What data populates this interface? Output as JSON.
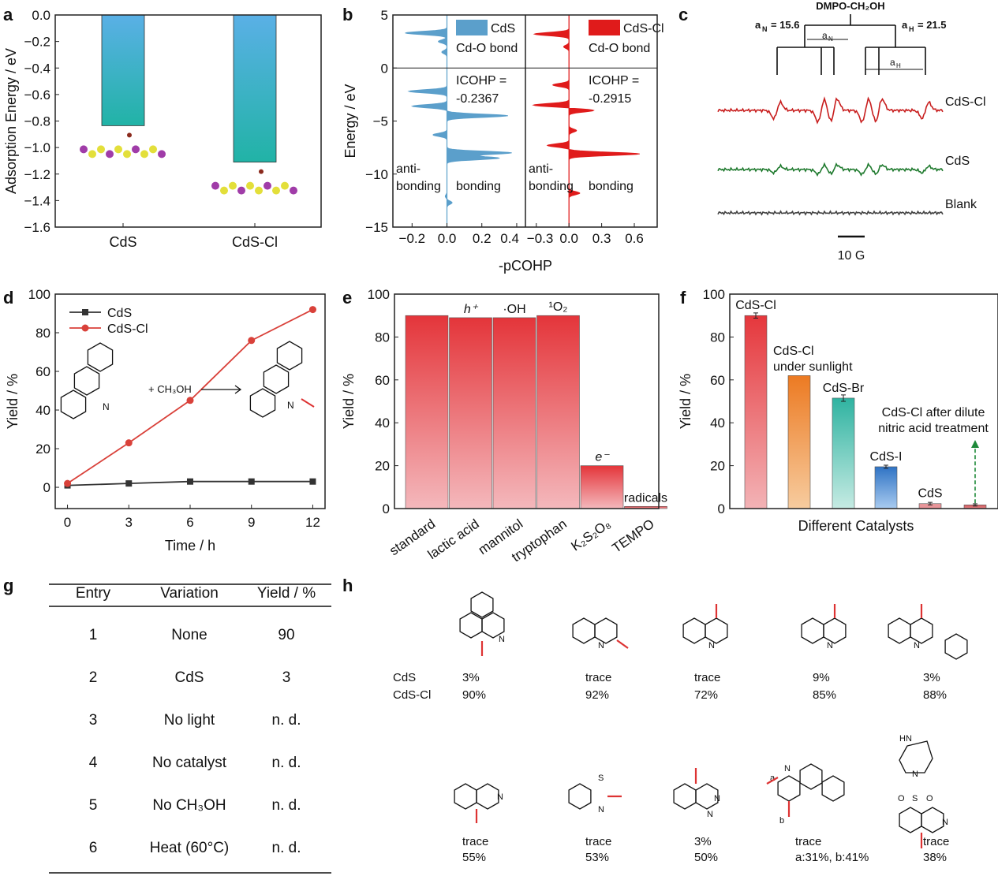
{
  "panel_labels": [
    "a",
    "b",
    "c",
    "d",
    "e",
    "f",
    "g",
    "h"
  ],
  "chart_data": [
    {
      "id": "a",
      "type": "bar",
      "categories": [
        "CdS",
        "CdS-Cl"
      ],
      "values": [
        -0.835,
        -1.11
      ],
      "ylabel": "Adsorption Energy / eV",
      "ylim": [
        -1.6,
        0.0
      ],
      "yticks": [
        "0.0",
        "-0.2",
        "-0.4",
        "-0.6",
        "-0.8",
        "-1.0",
        "-1.2",
        "-1.4",
        "-1.6"
      ],
      "bar_color_top": "#5ab0e6",
      "bar_color_bottom": "#21b3a6"
    },
    {
      "id": "b",
      "type": "area",
      "ylabel": "Energy / eV",
      "xlabel": "-pCOHP",
      "ylim": [
        -15,
        5
      ],
      "yticks": [
        "5",
        "0",
        "-5",
        "-10",
        "-15"
      ],
      "panels": [
        {
          "name": "CdS",
          "subtitle": "Cd-O bond",
          "icohp_label": "ICOHP =",
          "icohp_value": "-0.2367",
          "color": "#5b9fcb",
          "xlim": [
            -0.31,
            0.45
          ],
          "xticks": [
            "-0.2",
            "0.0",
            "0.2",
            "0.4"
          ],
          "xtick_values": [
            -0.2,
            0,
            0.2,
            0.4
          ],
          "peaks": [
            [
              3.3,
              -0.24
            ],
            [
              2.5,
              -0.05
            ],
            [
              1.5,
              -0.03
            ],
            [
              -2.2,
              -0.22
            ],
            [
              -3.6,
              -0.2
            ],
            [
              -4.5,
              0.35
            ],
            [
              -6.3,
              -0.08
            ],
            [
              -8.0,
              0.37
            ],
            [
              -8.5,
              0.3
            ],
            [
              -12.1,
              -0.01
            ],
            [
              -12.7,
              0.03
            ]
          ]
        },
        {
          "name": "CdS-Cl",
          "subtitle": "Cd-O bond",
          "icohp_label": "ICOHP =",
          "icohp_value": "-0.2915",
          "color": "#e01b1b",
          "xlim": [
            -0.4,
            0.81
          ],
          "xticks": [
            "-0.3",
            "0.0",
            "0.3",
            "0.6"
          ],
          "xtick_values": [
            -0.3,
            0,
            0.3,
            0.6
          ],
          "peaks": [
            [
              3.2,
              -0.32
            ],
            [
              2.0,
              -0.05
            ],
            [
              -1.6,
              -0.15
            ],
            [
              -3.5,
              -0.33
            ],
            [
              -4.0,
              0.23
            ],
            [
              -5.9,
              0.07
            ],
            [
              -7.3,
              -0.2
            ],
            [
              -8.1,
              0.65
            ],
            [
              -11.8,
              0.1
            ]
          ]
        }
      ],
      "region_labels": {
        "anti": "anti-",
        "anti2": "bonding",
        "bond": "bonding"
      }
    },
    {
      "id": "c",
      "type": "line",
      "title": "DMPO-CH₂OH",
      "aN_label": "a",
      "aN_sub": "N",
      "aN_value": "= 15.6",
      "aH_label": "a",
      "aH_sub": "H",
      "aH_value": "= 21.5",
      "series": [
        {
          "name": "CdS-Cl",
          "color": "#c81e1e",
          "amplitude": 1.0
        },
        {
          "name": "CdS",
          "color": "#1f7a2e",
          "amplitude": 0.4
        },
        {
          "name": "Blank",
          "color": "#444444",
          "amplitude": 0.0
        }
      ],
      "scale_bar": "10 G"
    },
    {
      "id": "d",
      "type": "line",
      "xlabel": "Time / h",
      "ylabel": "Yield / %",
      "x": [
        0,
        3,
        6,
        9,
        12
      ],
      "xlim": [
        -0.6,
        12.6
      ],
      "ylim": [
        -11,
        100
      ],
      "xticks": [
        "0",
        "3",
        "6",
        "9",
        "12"
      ],
      "yticks": [
        "0",
        "20",
        "40",
        "60",
        "80",
        "100"
      ],
      "series": [
        {
          "name": "CdS",
          "values": [
            1,
            2,
            3,
            3,
            3
          ],
          "color": "#333333",
          "marker": "square"
        },
        {
          "name": "CdS-Cl",
          "values": [
            2,
            23,
            45,
            76,
            92
          ],
          "color": "#d9413a",
          "marker": "circle"
        }
      ],
      "legend": "top-left",
      "reaction": "+ CH₃OH",
      "atom_N": "N"
    },
    {
      "id": "e",
      "type": "bar",
      "ylabel": "Yield / %",
      "ylim": [
        0,
        100
      ],
      "yticks": [
        "0",
        "20",
        "40",
        "60",
        "80",
        "100"
      ],
      "categories": [
        "standard",
        "lactic acid",
        "mannitol",
        "tryptophan",
        "K₂S₂O₈",
        "TEMPO"
      ],
      "values": [
        90,
        89,
        89,
        90,
        20,
        1
      ],
      "annotations": [
        "",
        "h⁺",
        "·OH",
        "¹O₂",
        "e⁻",
        "radicals"
      ],
      "bar_color_top": "#e4353a",
      "bar_color_bottom": "#f4b8bc"
    },
    {
      "id": "f",
      "type": "bar",
      "xlabel": "Different Catalysts",
      "ylabel": "Yield / %",
      "ylim": [
        0,
        100
      ],
      "yticks": [
        "0",
        "20",
        "40",
        "60",
        "80",
        "100"
      ],
      "labels": [
        [
          "CdS-Cl"
        ],
        [
          "CdS-Cl",
          "under sunlight"
        ],
        [
          "CdS-Br"
        ],
        [
          "CdS-I"
        ],
        [
          "CdS"
        ],
        [
          "CdS-Cl after dilute",
          " nitric acid treatment"
        ]
      ],
      "values": [
        90,
        62,
        51.5,
        19.5,
        2.3,
        1.7
      ],
      "errors": [
        1.2,
        0,
        1.5,
        0.7,
        0.6,
        0.5
      ],
      "colors": [
        [
          "#e5373c",
          "#f3b3b6"
        ],
        [
          "#ec7a22",
          "#f7cc9f"
        ],
        [
          "#2fb3a1",
          "#c6ebe3"
        ],
        [
          "#2f73c4",
          "#a9cbf0"
        ],
        [
          "#e8969a",
          "#e8969a"
        ],
        [
          "#d4595c",
          "#e4878a"
        ]
      ],
      "arrow_color": "#1f8a3a"
    }
  ],
  "table_g": {
    "headers": [
      "Entry",
      "Variation",
      "Yield / %"
    ],
    "rows": [
      [
        "1",
        "None",
        "90"
      ],
      [
        "2",
        "CdS",
        "3"
      ],
      [
        "3",
        "No light",
        "n. d."
      ],
      [
        "4",
        "No catalyst",
        "n. d."
      ],
      [
        "5",
        "No CH₃OH",
        "n. d."
      ],
      [
        "6",
        "Heat (60°C)",
        "n. d."
      ]
    ]
  },
  "panel_h": {
    "row_labels": [
      "CdS",
      "CdS-Cl"
    ],
    "row1": [
      [
        "3%",
        "90%"
      ],
      [
        "trace",
        "92%"
      ],
      [
        "trace",
        "72%"
      ],
      [
        "9%",
        "85%"
      ],
      [
        "3%",
        "88%"
      ]
    ],
    "row2": [
      [
        "trace",
        "55%"
      ],
      [
        "trace",
        "53%"
      ],
      [
        "3%",
        "50%"
      ],
      [
        "trace",
        "a:31%, b:41%"
      ],
      [
        "trace",
        "38%"
      ]
    ],
    "atoms": {
      "N": "N",
      "S": "S",
      "HN": "HN",
      "O": "O",
      "a": "a",
      "b": "b"
    }
  }
}
